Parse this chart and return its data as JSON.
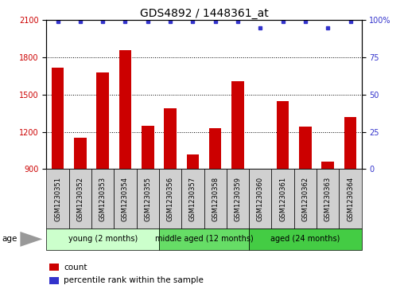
{
  "title": "GDS4892 / 1448361_at",
  "samples": [
    "GSM1230351",
    "GSM1230352",
    "GSM1230353",
    "GSM1230354",
    "GSM1230355",
    "GSM1230356",
    "GSM1230357",
    "GSM1230358",
    "GSM1230359",
    "GSM1230360",
    "GSM1230361",
    "GSM1230362",
    "GSM1230363",
    "GSM1230364"
  ],
  "counts": [
    1720,
    1150,
    1680,
    1860,
    1250,
    1390,
    1020,
    1230,
    1610,
    880,
    1450,
    1240,
    960,
    1320
  ],
  "percentiles": [
    99,
    99,
    99,
    99,
    99,
    99,
    99,
    99,
    99,
    95,
    99,
    99,
    95,
    99
  ],
  "ylim_left": [
    900,
    2100
  ],
  "ylim_right": [
    0,
    100
  ],
  "yticks_left": [
    900,
    1200,
    1500,
    1800,
    2100
  ],
  "yticks_right": [
    0,
    25,
    50,
    75,
    100
  ],
  "bar_color": "#cc0000",
  "dot_color": "#3333cc",
  "sample_box_color": "#d0d0d0",
  "group_defs": [
    {
      "start": 0,
      "end": 5,
      "label": "young (2 months)",
      "color": "#ccffcc"
    },
    {
      "start": 5,
      "end": 9,
      "label": "middle aged (12 months)",
      "color": "#66dd66"
    },
    {
      "start": 9,
      "end": 14,
      "label": "aged (24 months)",
      "color": "#44cc44"
    }
  ],
  "title_fontsize": 10,
  "tick_fontsize": 7,
  "sample_fontsize": 6,
  "group_fontsize": 7,
  "legend_fontsize": 7.5
}
